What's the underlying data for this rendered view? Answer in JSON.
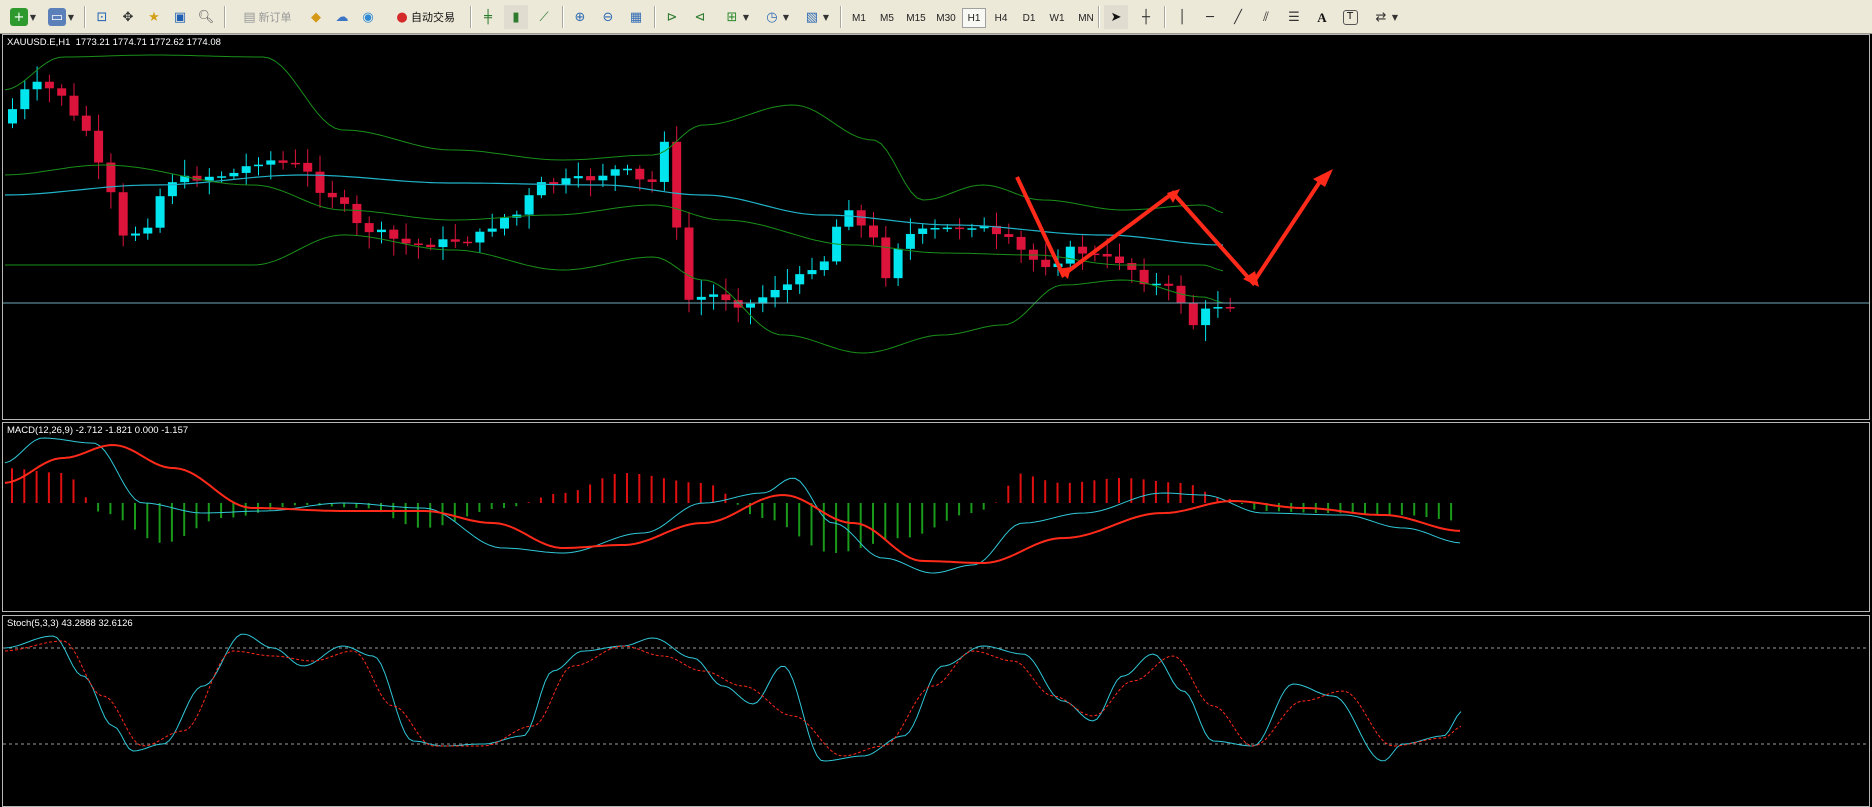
{
  "toolbar": {
    "new_order_label": "新订单",
    "auto_trade_label": "自动交易",
    "timeframes": [
      "M1",
      "M5",
      "M15",
      "M30",
      "H1",
      "H4",
      "D1",
      "W1",
      "MN"
    ],
    "active_timeframe": "H1"
  },
  "main_panel": {
    "label": "XAUUSD.E,H1  1773.21 1774.71 1772.62 1774.08"
  },
  "macd_panel": {
    "label": "MACD(12,26,9) -2.712 -1.821 0.000 -1.157"
  },
  "stoch_panel": {
    "label": "Stoch(5,3,3) 43.2888 32.6126"
  },
  "colors": {
    "bull_candle": "#00e5ee",
    "bear_candle": "#dc143c",
    "bollinger": "#1a8f1a",
    "moving_average": "#20b2c8",
    "macd_histogram_up": "#e01010",
    "macd_histogram_down": "#1a9a1a",
    "macd_signal": "#ff2a1a",
    "macd_line": "#30c8d8",
    "stoch_main": "#30c8d8",
    "stoch_signal": "#ff2a1a",
    "annotation_arrow": "#ff2a1a"
  }
}
